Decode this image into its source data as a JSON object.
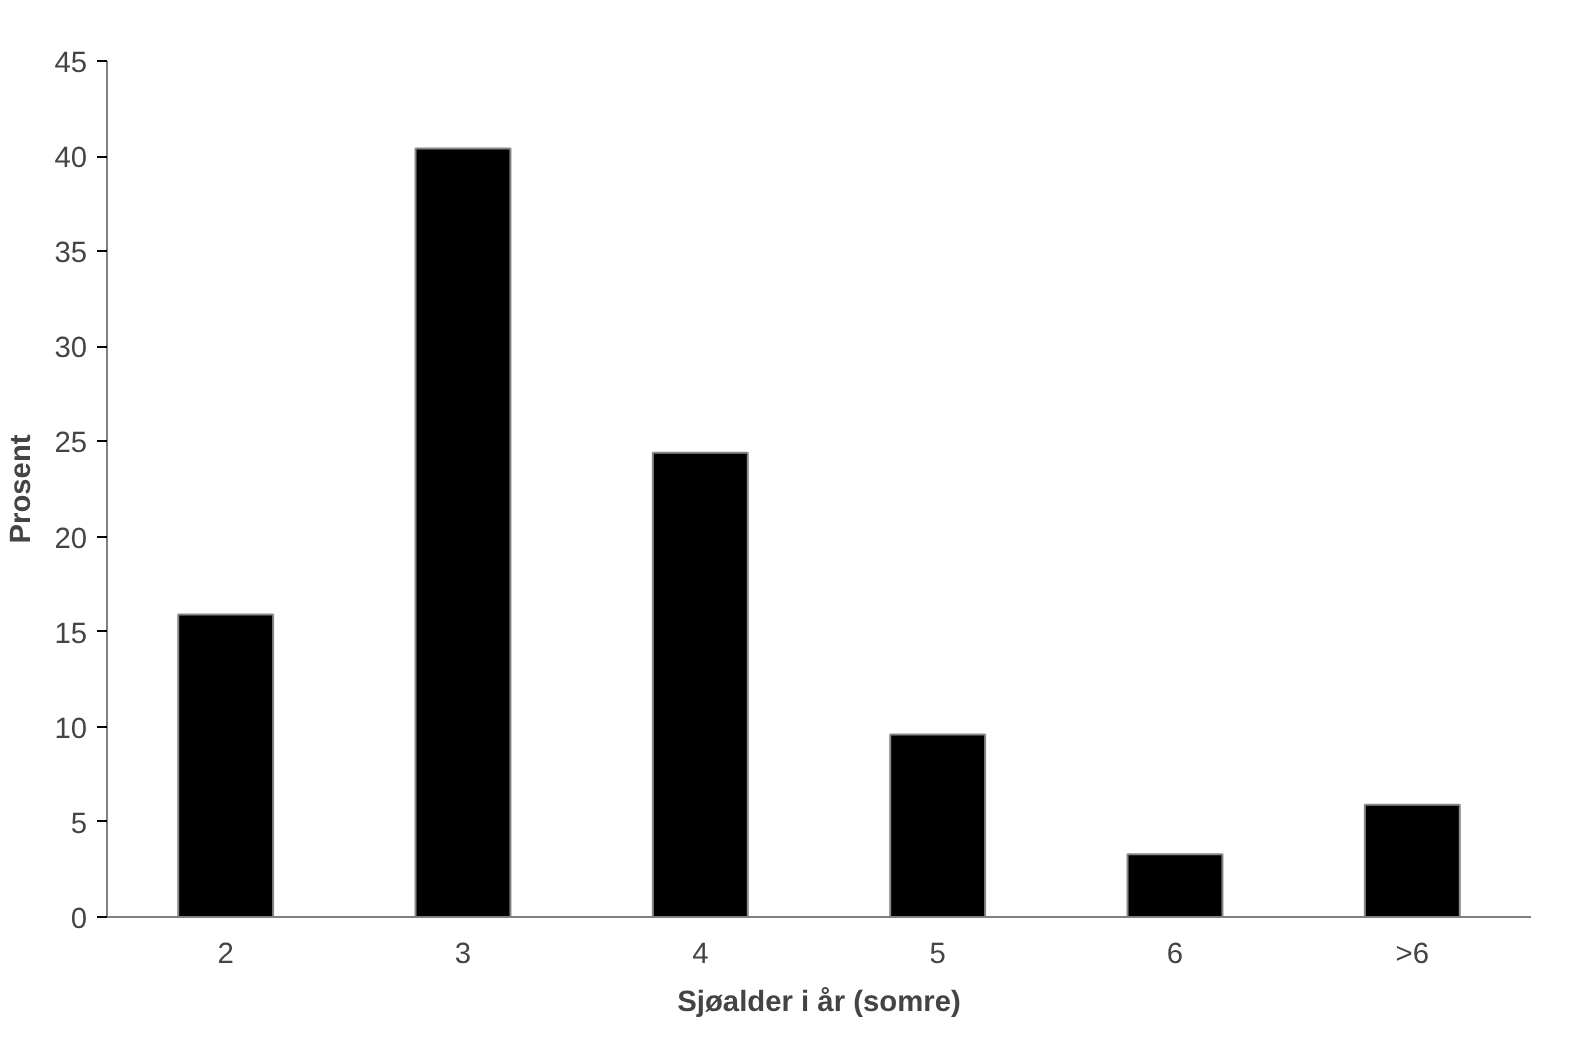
{
  "chart_data": {
    "type": "bar",
    "xlabel": "Sjøalder i år (somre)",
    "ylabel": "Prosent",
    "categories": [
      "2",
      "3",
      "4",
      "5",
      "6",
      ">6"
    ],
    "values": [
      15.9,
      40.4,
      24.4,
      9.6,
      3.3,
      5.9
    ],
    "color": "#000000",
    "ylim": [
      0,
      45
    ],
    "yticks": [
      0,
      5,
      10,
      15,
      20,
      25,
      30,
      35,
      40,
      45
    ],
    "grid": false
  }
}
